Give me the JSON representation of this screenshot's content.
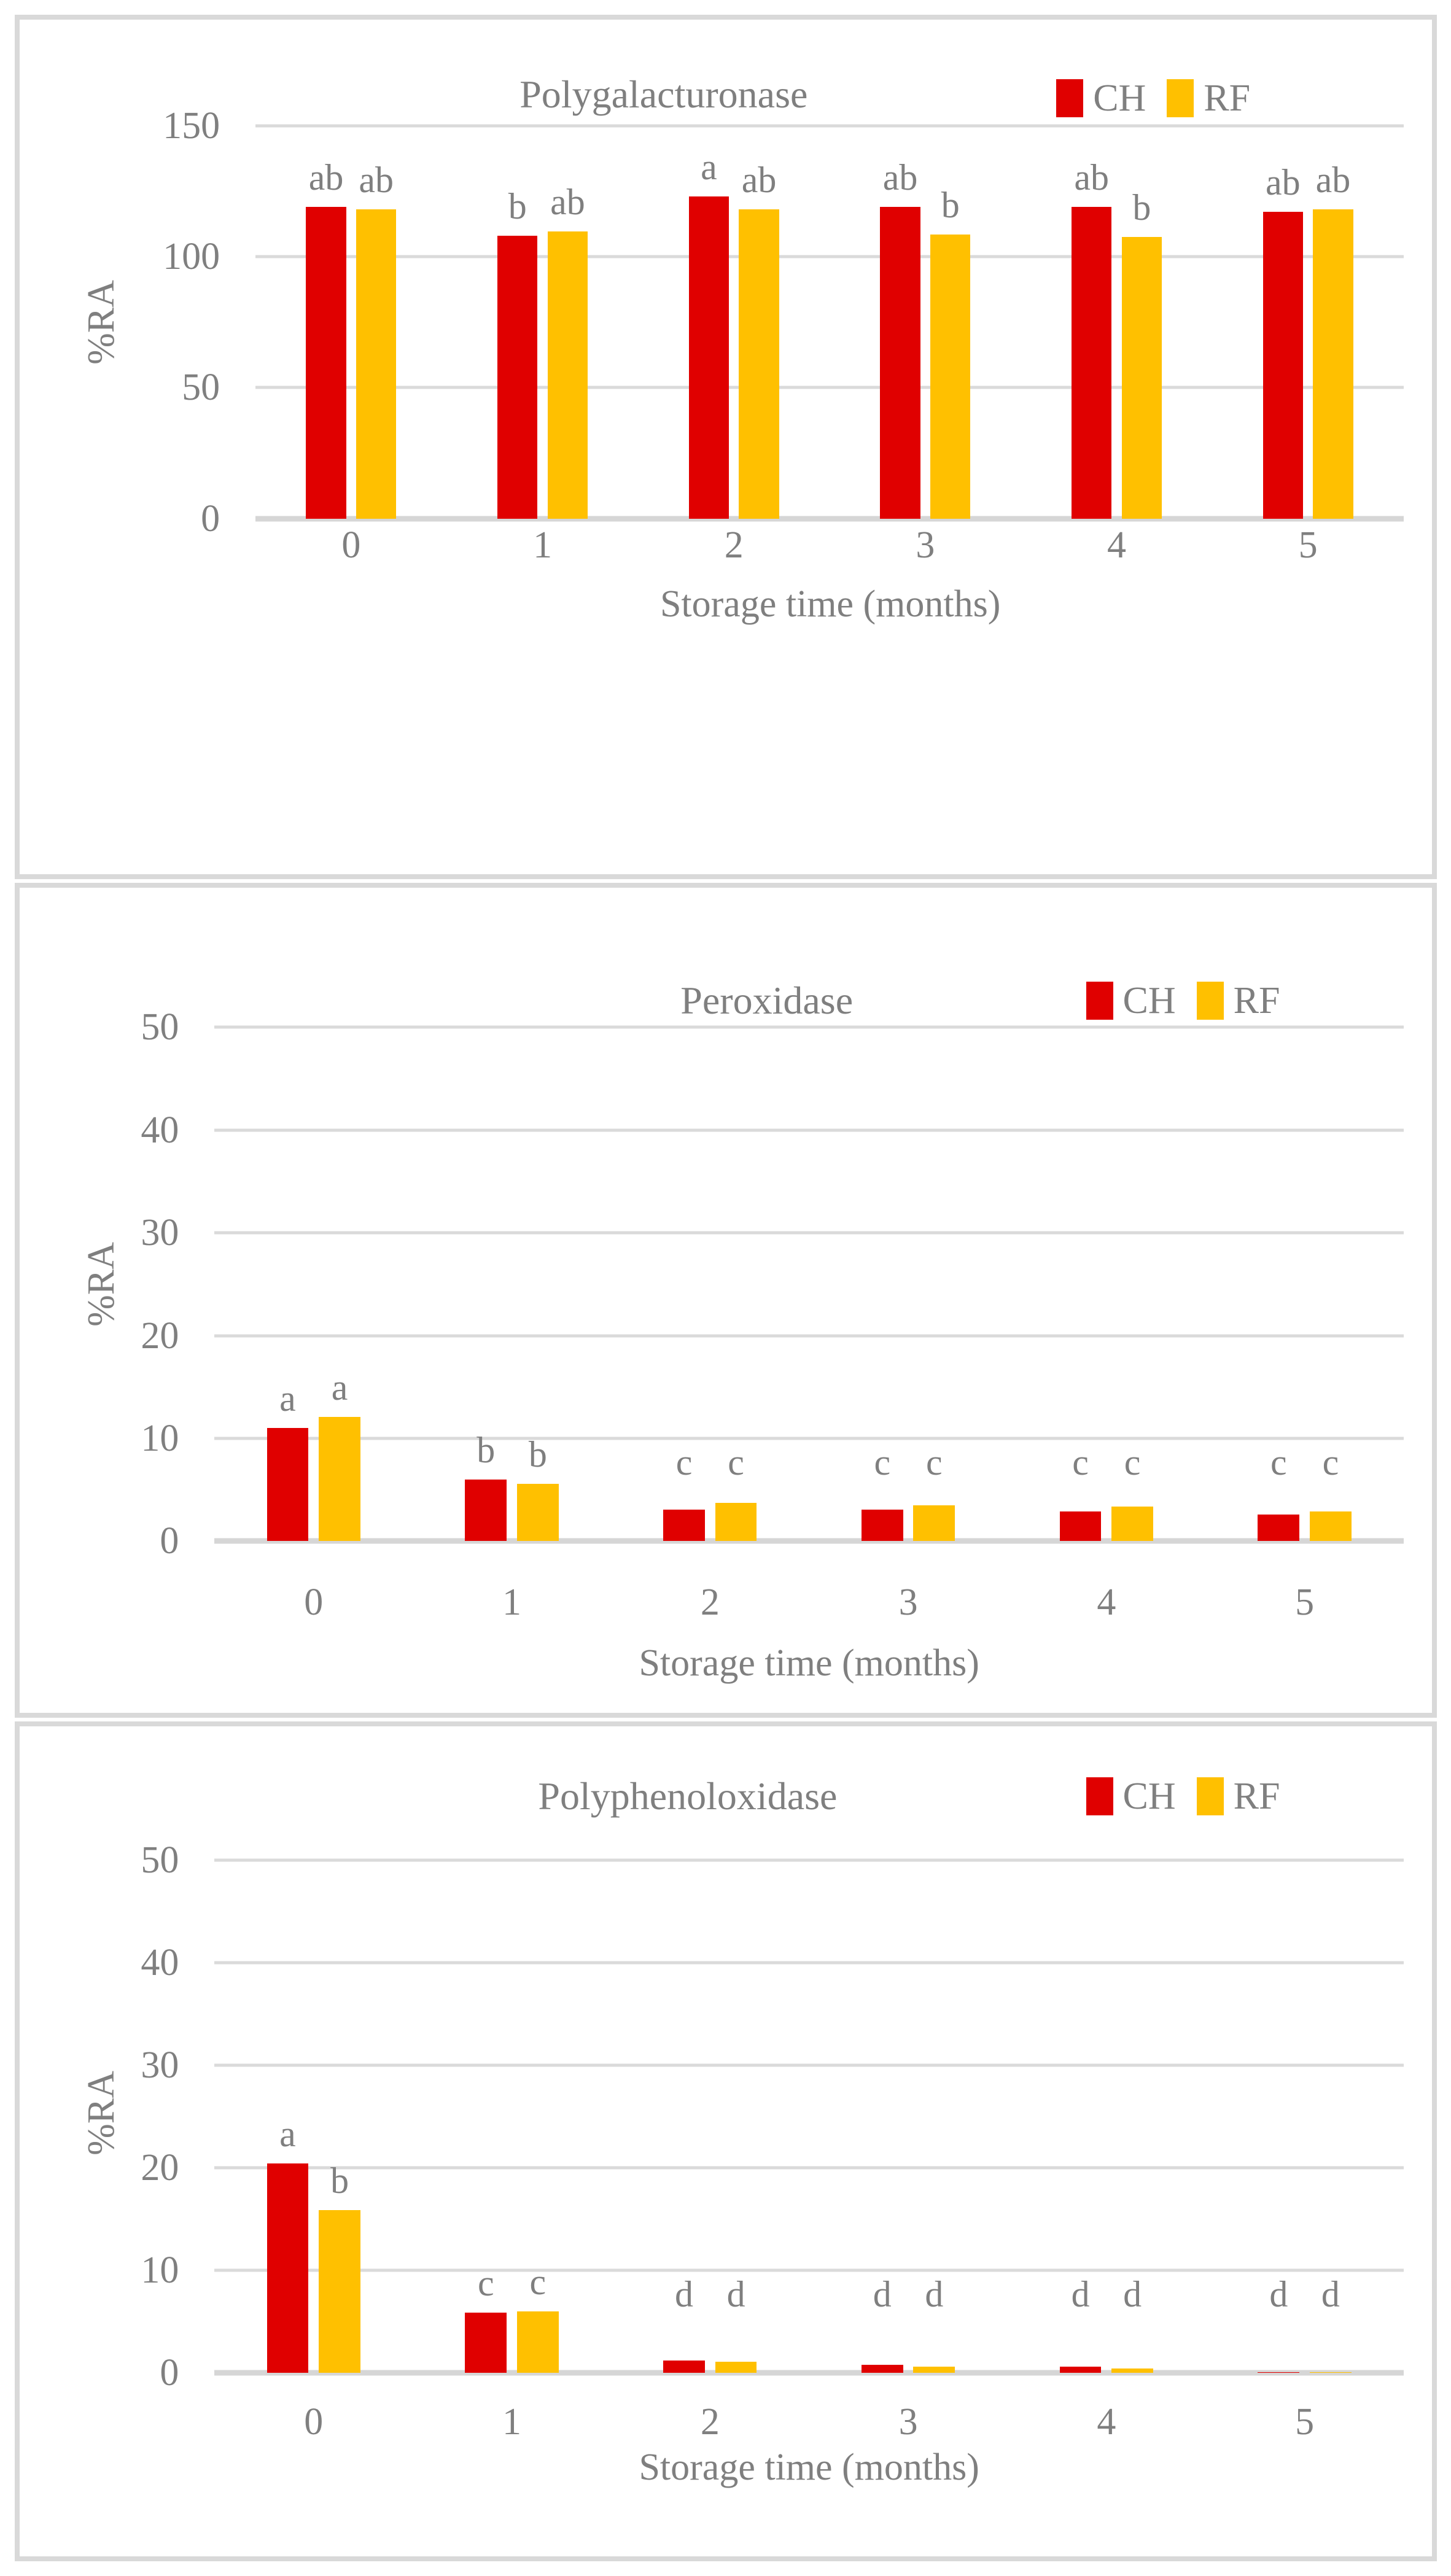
{
  "figure": {
    "y_axis_label": "%RA",
    "x_axis_title": "Storage time (months)",
    "categories": [
      "0",
      "1",
      "2",
      "3",
      "4",
      "5"
    ],
    "legend": [
      {
        "label": "CH",
        "color": "#e00000"
      },
      {
        "label": "RF",
        "color": "#ffc000"
      }
    ],
    "text_color": "#7f7f7f",
    "gridline_color": "#d9d9d9",
    "panel_border_color": "#d9d9d9"
  },
  "chart_data": [
    {
      "type": "bar",
      "title": "Polygalacturonase",
      "categories": [
        0,
        1,
        2,
        3,
        4,
        5
      ],
      "xlabel": "Storage time (months)",
      "ylabel": "%RA",
      "ylim": [
        0,
        150
      ],
      "yticks": [
        0,
        50,
        100,
        150
      ],
      "grid": true,
      "legend_position": "top-right",
      "series": [
        {
          "name": "CH",
          "color": "#e00000",
          "values": [
            119,
            108,
            123,
            119,
            119,
            117
          ],
          "letters": [
            "ab",
            "b",
            "a",
            "ab",
            "ab",
            "ab"
          ]
        },
        {
          "name": "RF",
          "color": "#ffc000",
          "values": [
            118,
            109.5,
            118,
            108.5,
            107.5,
            118
          ],
          "letters": [
            "ab",
            "ab",
            "ab",
            "b",
            "b",
            "ab"
          ]
        }
      ]
    },
    {
      "type": "bar",
      "title": "Peroxidase",
      "categories": [
        0,
        1,
        2,
        3,
        4,
        5
      ],
      "xlabel": "Storage time (months)",
      "ylabel": "%RA",
      "ylim": [
        0,
        50
      ],
      "yticks": [
        0,
        10,
        20,
        30,
        40,
        50
      ],
      "grid": true,
      "legend_position": "top-right",
      "series": [
        {
          "name": "CH",
          "color": "#e00000",
          "values": [
            11,
            6,
            3.1,
            3.1,
            2.9,
            2.6
          ],
          "letters": [
            "a",
            "b",
            "c",
            "c",
            "c",
            "c"
          ]
        },
        {
          "name": "RF",
          "color": "#ffc000",
          "values": [
            12.1,
            5.6,
            3.7,
            3.5,
            3.4,
            2.9
          ],
          "letters": [
            "a",
            "b",
            "c",
            "c",
            "c",
            "c"
          ]
        }
      ]
    },
    {
      "type": "bar",
      "title": "Polyphenoloxidase",
      "categories": [
        0,
        1,
        2,
        3,
        4,
        5
      ],
      "xlabel": "Storage time (months)",
      "ylabel": "%RA",
      "ylim": [
        0,
        50
      ],
      "yticks": [
        0,
        10,
        20,
        30,
        40,
        50
      ],
      "grid": true,
      "legend_position": "top-right",
      "series": [
        {
          "name": "CH",
          "color": "#e00000",
          "values": [
            20.4,
            5.9,
            1.2,
            0.8,
            0.6,
            0.05
          ],
          "letters": [
            "a",
            "c",
            "d",
            "d",
            "d",
            "d"
          ]
        },
        {
          "name": "RF",
          "color": "#ffc000",
          "values": [
            15.9,
            6,
            1.1,
            0.6,
            0.45,
            0.05
          ],
          "letters": [
            "b",
            "c",
            "d",
            "d",
            "d",
            "d"
          ]
        }
      ]
    }
  ]
}
